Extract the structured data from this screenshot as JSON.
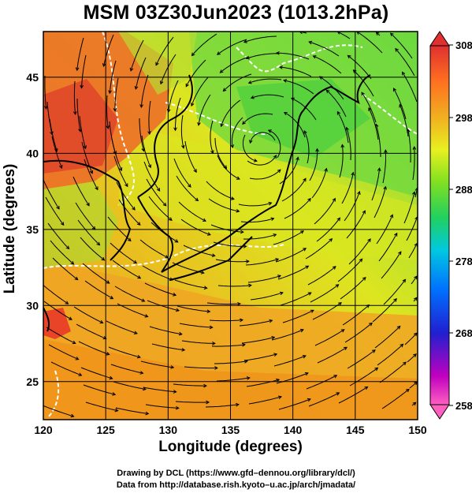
{
  "title": "MSM 03Z30Jun2023 (1013.2hPa)",
  "xlabel": "Longitude (degrees)",
  "ylabel": "Latitude  (degrees)",
  "credits": [
    "Drawing by DCL (https://www.gfd–dennou.org/library/dcl/)",
    "Data from http://database.rish.kyoto–u.ac.jp/arch/jmadata/"
  ],
  "map": {
    "lon_range": [
      120,
      150
    ],
    "lat_range": [
      22.5,
      48
    ],
    "x_ticks": [
      "120",
      "125",
      "130",
      "135",
      "140",
      "145",
      "150"
    ],
    "y_ticks": [
      "25",
      "30",
      "35",
      "40",
      "45"
    ],
    "grid": true,
    "field": "temperature",
    "overlay": "wind streamlines",
    "cyclone_center": {
      "lon": 137.5,
      "lat": 40.5
    }
  },
  "colorbar": {
    "labels": [
      "308",
      "298",
      "288",
      "278",
      "268",
      "258"
    ],
    "min": 258,
    "max": 308,
    "colors": [
      "#ff60c0",
      "#c000c0",
      "#2020d0",
      "#0070ff",
      "#00c8e0",
      "#20d060",
      "#80e020",
      "#e8f020",
      "#f0b020",
      "#ff7020",
      "#e03030"
    ]
  },
  "colors": {
    "hot": "#e8502a",
    "warm": "#f09a20",
    "mild": "#e2e520",
    "cool": "#70d840",
    "cold": "#30c840",
    "coast": "#000000",
    "streamline": "#000000",
    "contour": "#ffffff"
  }
}
